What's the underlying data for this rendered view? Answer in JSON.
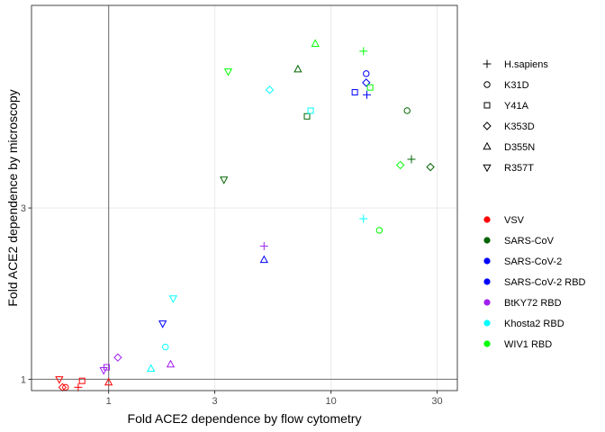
{
  "chart_data": {
    "type": "scatter",
    "x_scale": "log",
    "y_scale": "log",
    "xlabel": "Fold ACE2 dependence by flow cytometry",
    "ylabel": "Fold ACE2 dependence by microscopy",
    "xlim": [
      0.45,
      37
    ],
    "ylim": [
      0.93,
      11
    ],
    "x_ticks": [
      1,
      3,
      10,
      30
    ],
    "y_ticks": [
      1,
      3
    ],
    "reference_lines": {
      "x": 1,
      "y": 1
    },
    "grid": true,
    "legend_position": "right",
    "shape_legend": [
      {
        "label": "H.sapiens",
        "shape": "plus"
      },
      {
        "label": "K31D",
        "shape": "circle"
      },
      {
        "label": "Y41A",
        "shape": "square"
      },
      {
        "label": "K353D",
        "shape": "diamond"
      },
      {
        "label": "D355N",
        "shape": "triangle-up"
      },
      {
        "label": "R357T",
        "shape": "triangle-down"
      }
    ],
    "color_legend": [
      {
        "label": "VSV",
        "color": "#ff0000"
      },
      {
        "label": "SARS-CoV",
        "color": "#006400"
      },
      {
        "label": "SARS-CoV-2",
        "color": "#0000ff"
      },
      {
        "label": "SARS-CoV-2 RBD",
        "color": "#0000ff"
      },
      {
        "label": "BtKY72 RBD",
        "color": "#a020f0"
      },
      {
        "label": "Khosta2 RBD",
        "color": "#00ffff"
      },
      {
        "label": "WIV1 RBD",
        "color": "#00ff00"
      }
    ],
    "points": [
      {
        "group": "VSV",
        "shape": "plus",
        "x": 0.73,
        "y": 0.95
      },
      {
        "group": "VSV",
        "shape": "circle",
        "x": 0.64,
        "y": 0.95
      },
      {
        "group": "VSV",
        "shape": "square",
        "x": 0.76,
        "y": 0.99
      },
      {
        "group": "VSV",
        "shape": "diamond",
        "x": 0.62,
        "y": 0.95
      },
      {
        "group": "VSV",
        "shape": "triangle-up",
        "x": 1.0,
        "y": 0.98
      },
      {
        "group": "VSV",
        "shape": "triangle-down",
        "x": 0.6,
        "y": 1.0
      },
      {
        "group": "SARS-CoV",
        "shape": "plus",
        "x": 23,
        "y": 4.1
      },
      {
        "group": "SARS-CoV",
        "shape": "circle",
        "x": 22,
        "y": 5.6
      },
      {
        "group": "SARS-CoV",
        "shape": "square",
        "x": 7.8,
        "y": 5.4
      },
      {
        "group": "SARS-CoV",
        "shape": "diamond",
        "x": 28,
        "y": 3.9
      },
      {
        "group": "SARS-CoV",
        "shape": "triangle-up",
        "x": 7.1,
        "y": 7.3
      },
      {
        "group": "SARS-CoV",
        "shape": "triangle-down",
        "x": 3.3,
        "y": 3.6
      },
      {
        "group": "SARS-CoV-2",
        "shape": "plus",
        "x": 14.5,
        "y": 6.2
      },
      {
        "group": "SARS-CoV-2",
        "shape": "circle",
        "x": 14.4,
        "y": 7.1
      },
      {
        "group": "SARS-CoV-2",
        "shape": "square",
        "x": 12.8,
        "y": 6.3
      },
      {
        "group": "SARS-CoV-2",
        "shape": "diamond",
        "x": 14.4,
        "y": 6.7
      },
      {
        "group": "SARS-CoV-2",
        "shape": "triangle-up",
        "x": 5.0,
        "y": 2.15
      },
      {
        "group": "SARS-CoV-2",
        "shape": "triangle-down",
        "x": 1.75,
        "y": 1.43
      },
      {
        "group": "BtKY72 RBD",
        "shape": "plus",
        "x": 5.0,
        "y": 2.35
      },
      {
        "group": "BtKY72 RBD",
        "shape": "square",
        "x": 0.98,
        "y": 1.08
      },
      {
        "group": "BtKY72 RBD",
        "shape": "diamond",
        "x": 1.1,
        "y": 1.15
      },
      {
        "group": "BtKY72 RBD",
        "shape": "triangle-up",
        "x": 1.9,
        "y": 1.1
      },
      {
        "group": "BtKY72 RBD",
        "shape": "triangle-down",
        "x": 0.95,
        "y": 1.06
      },
      {
        "group": "Khosta2 RBD",
        "shape": "plus",
        "x": 14.0,
        "y": 2.8
      },
      {
        "group": "Khosta2 RBD",
        "shape": "circle",
        "x": 1.8,
        "y": 1.23
      },
      {
        "group": "Khosta2 RBD",
        "shape": "square",
        "x": 8.1,
        "y": 5.6
      },
      {
        "group": "Khosta2 RBD",
        "shape": "diamond",
        "x": 5.3,
        "y": 6.4
      },
      {
        "group": "Khosta2 RBD",
        "shape": "triangle-up",
        "x": 1.55,
        "y": 1.07
      },
      {
        "group": "Khosta2 RBD",
        "shape": "triangle-down",
        "x": 1.95,
        "y": 1.68
      },
      {
        "group": "WIV1 RBD",
        "shape": "plus",
        "x": 14.0,
        "y": 8.2
      },
      {
        "group": "WIV1 RBD",
        "shape": "circle",
        "x": 16.5,
        "y": 2.6
      },
      {
        "group": "WIV1 RBD",
        "shape": "square",
        "x": 15.0,
        "y": 6.5
      },
      {
        "group": "WIV1 RBD",
        "shape": "diamond",
        "x": 20.5,
        "y": 3.95
      },
      {
        "group": "WIV1 RBD",
        "shape": "triangle-up",
        "x": 8.5,
        "y": 8.6
      },
      {
        "group": "WIV1 RBD",
        "shape": "triangle-down",
        "x": 3.45,
        "y": 7.2
      }
    ]
  }
}
